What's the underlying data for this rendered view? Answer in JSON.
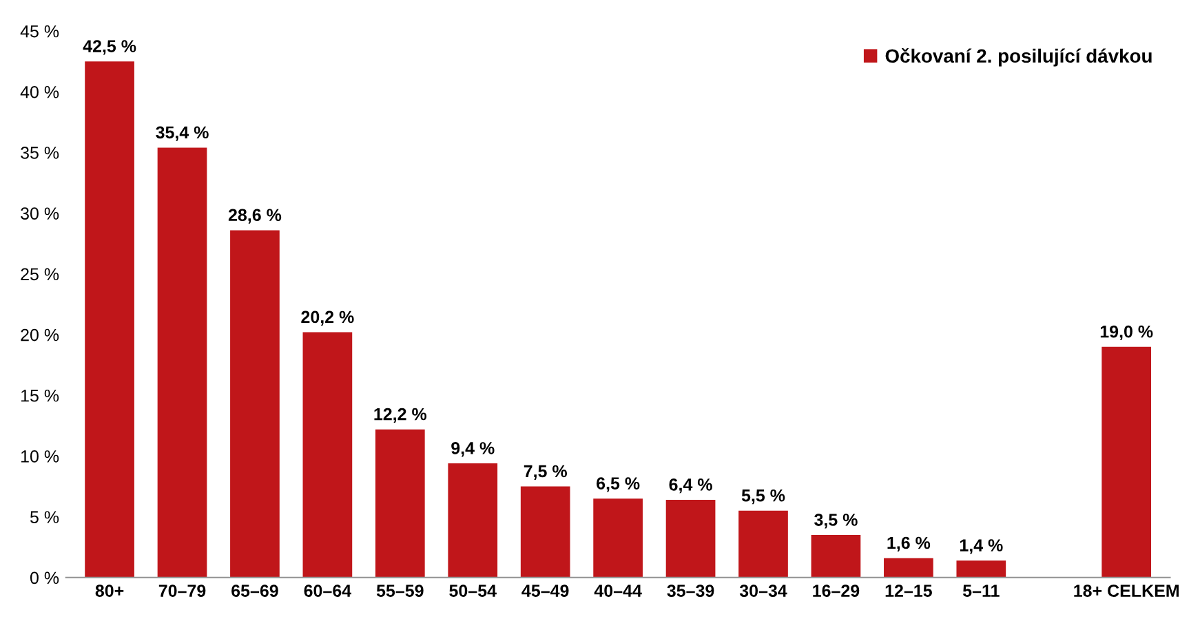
{
  "chart_data": {
    "type": "bar",
    "categories": [
      "80+",
      "70–79",
      "65–69",
      "60–64",
      "55–59",
      "50–54",
      "45–49",
      "40–44",
      "35–39",
      "30–34",
      "16–29",
      "12–15",
      "5–11",
      null,
      "18+ CELKEM"
    ],
    "series": [
      {
        "name": "Očkovaní 2. posilující dávkou",
        "color": "#c0161a",
        "values": [
          42.5,
          35.4,
          28.6,
          20.2,
          12.2,
          9.4,
          7.5,
          6.5,
          6.4,
          5.5,
          3.5,
          1.6,
          1.4,
          null,
          19.0
        ],
        "value_labels": [
          "42,5 %",
          "35,4 %",
          "28,6 %",
          "20,2 %",
          "12,2 %",
          "9,4 %",
          "7,5 %",
          "6,5 %",
          "6,4 %",
          "5,5 %",
          "3,5 %",
          "1,6 %",
          "1,4 %",
          null,
          "19,0 %"
        ]
      }
    ],
    "ylim": [
      0,
      45
    ],
    "yticks": [
      {
        "value": 0,
        "label": "0 %"
      },
      {
        "value": 5,
        "label": "5 %"
      },
      {
        "value": 10,
        "label": "10 %"
      },
      {
        "value": 15,
        "label": "15 %"
      },
      {
        "value": 20,
        "label": "20 %"
      },
      {
        "value": 25,
        "label": "25 %"
      },
      {
        "value": 30,
        "label": "30 %"
      },
      {
        "value": 35,
        "label": "35 %"
      },
      {
        "value": 40,
        "label": "40 %"
      },
      {
        "value": 45,
        "label": "45 %"
      }
    ],
    "legend": "top right",
    "grid": false
  }
}
